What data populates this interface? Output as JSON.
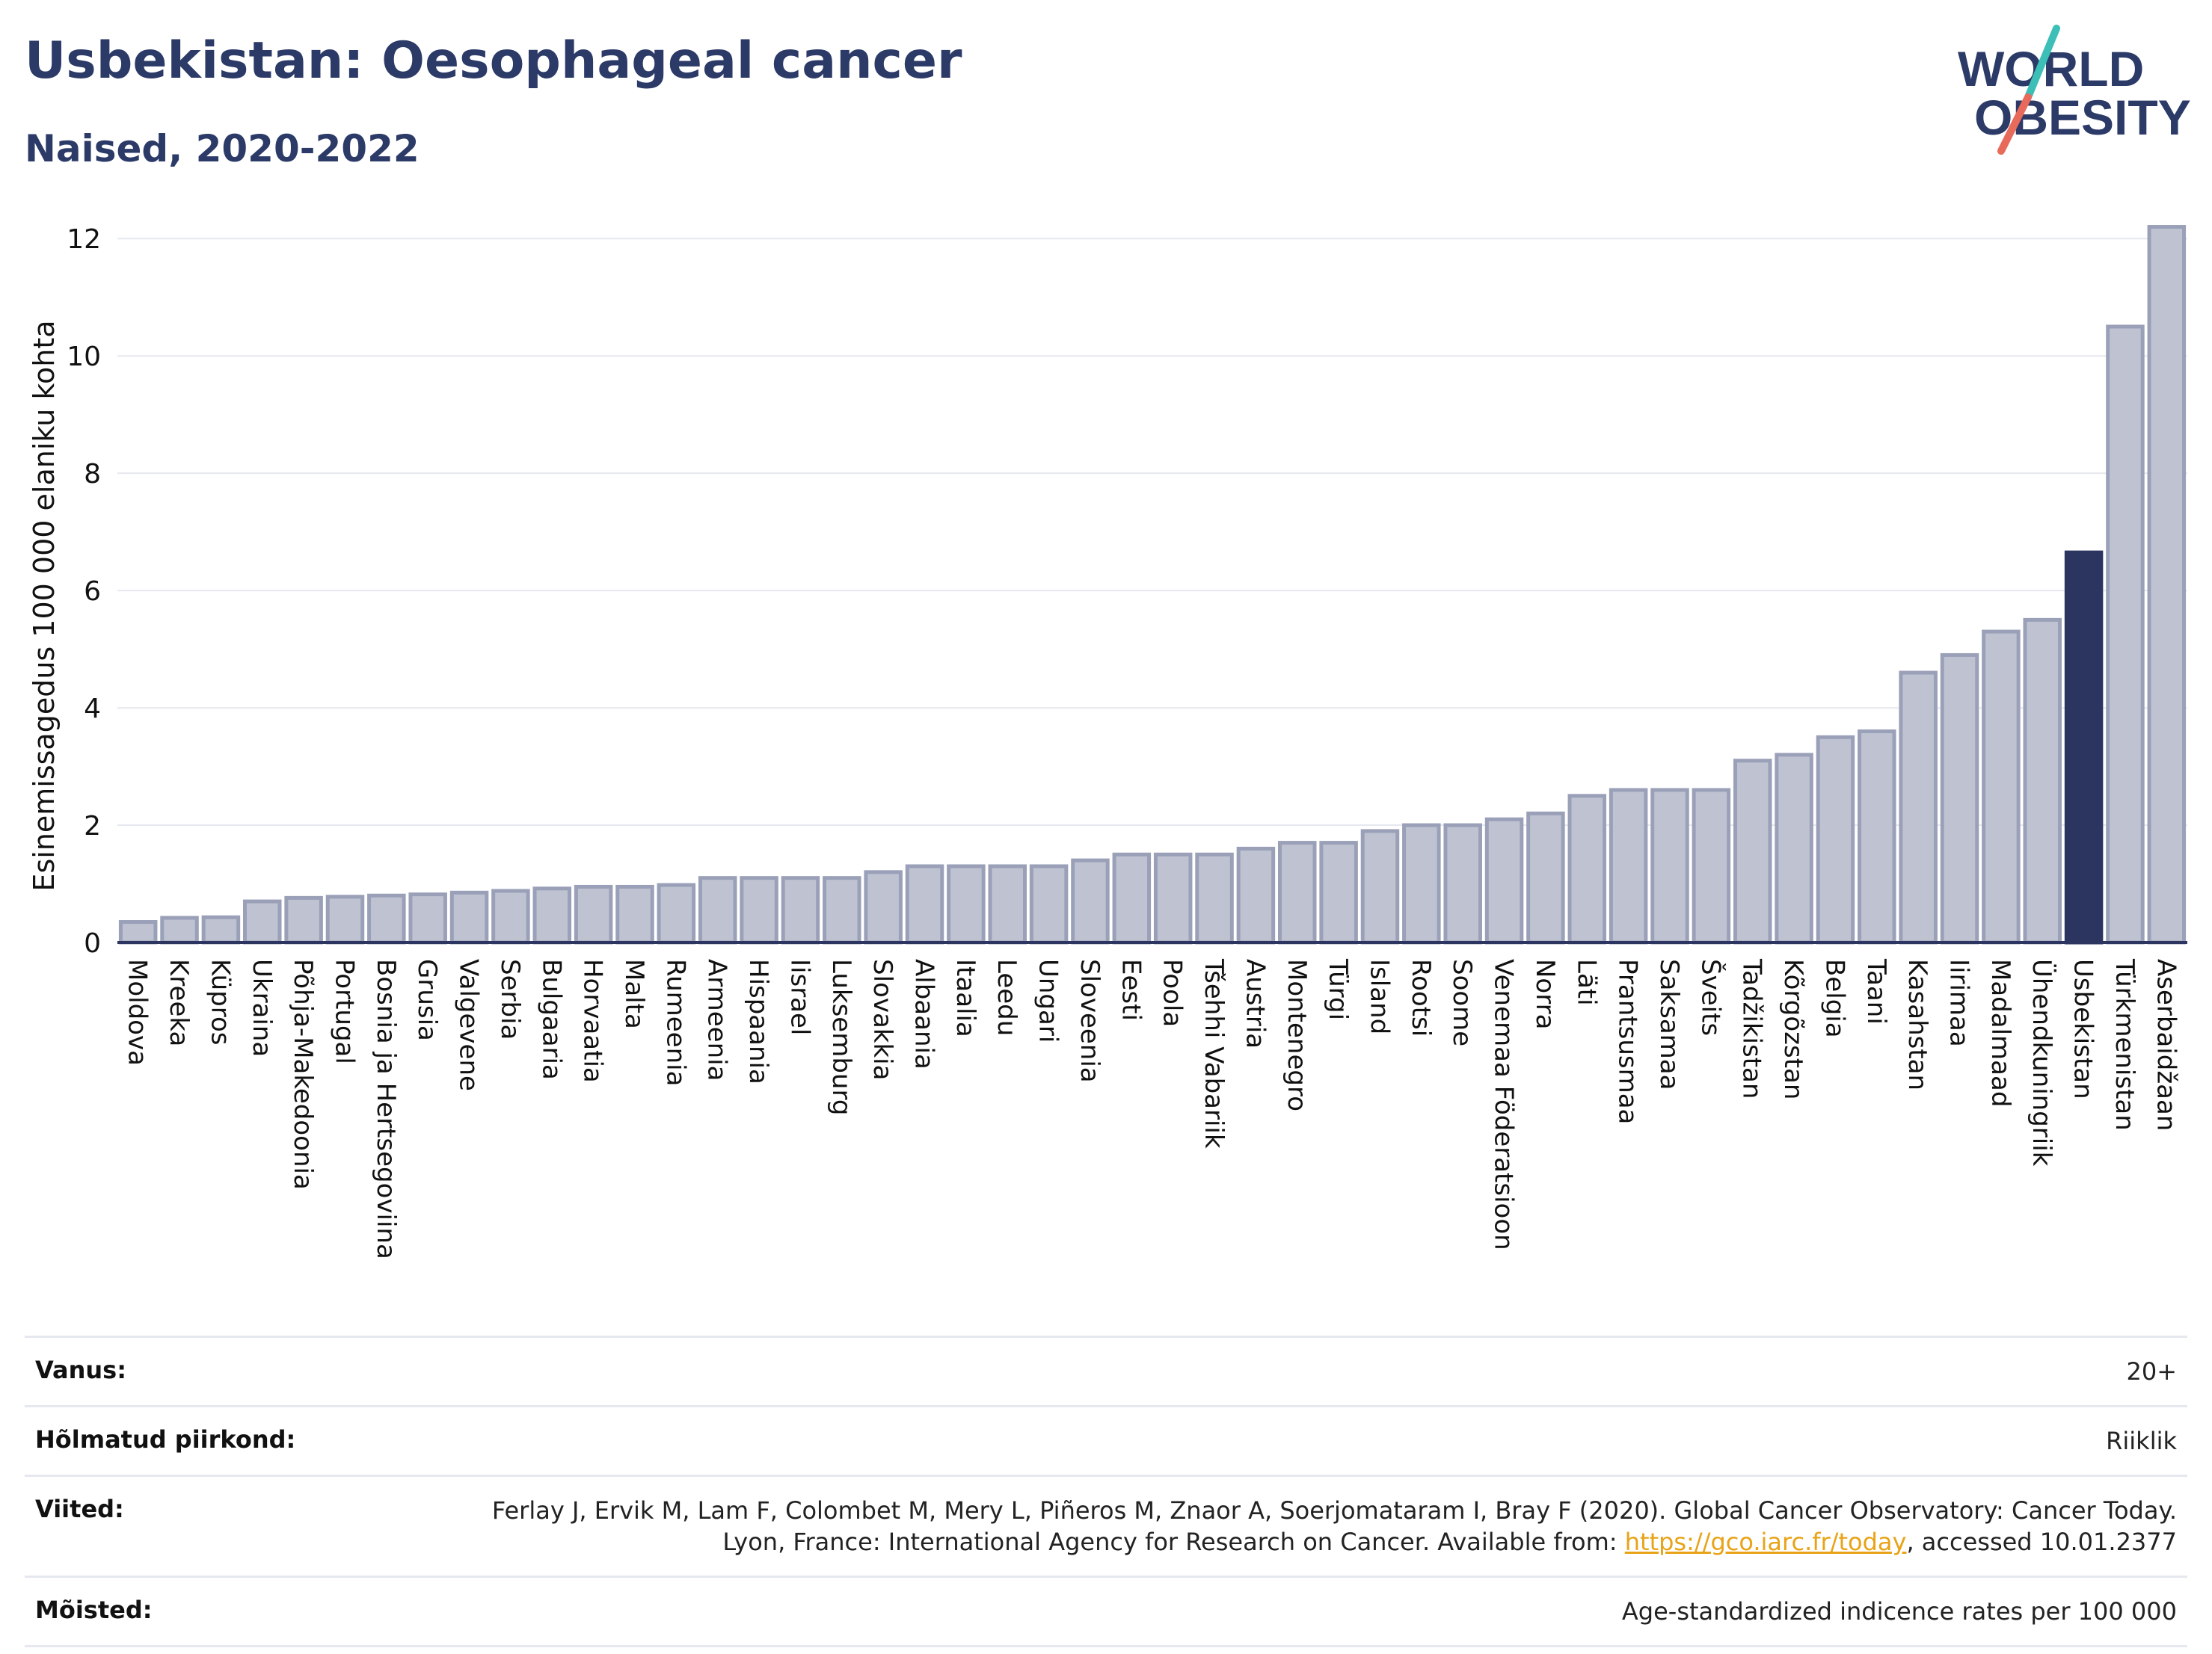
{
  "title": "Usbekistan: Oesophageal cancer",
  "subtitle": "Naised, 2020-2022",
  "logo": {
    "line1": "WORLD",
    "line2": "OBESITY",
    "accent_teal": "#3bbfb7",
    "accent_coral": "#e86a5a",
    "text_color": "#2b3a67"
  },
  "chart_data": {
    "type": "bar",
    "ylabel": "Esinemissagedus 100 000 elaniku kohta",
    "ylim": [
      0,
      12.5
    ],
    "yticks": [
      0,
      2,
      4,
      6,
      8,
      10,
      12
    ],
    "grid": true,
    "highlight": "Usbekistan",
    "colors": {
      "bar": "#bfc3d1",
      "bar_edge": "#9aa0b8",
      "highlight": "#2b3560",
      "axis": "#2b3560",
      "grid": "#e6e8ef"
    },
    "categories": [
      "Moldova",
      "Kreeka",
      "Küpros",
      "Ukraina",
      "Põhja-Makedoonia",
      "Portugal",
      "Bosnia ja Hertsegoviina",
      "Grusia",
      "Valgevene",
      "Serbia",
      "Bulgaaria",
      "Horvaatia",
      "Malta",
      "Rumeenia",
      "Armeenia",
      "Hispaania",
      "Iisrael",
      "Luksemburg",
      "Slovakkia",
      "Albaania",
      "Itaalia",
      "Leedu",
      "Ungari",
      "Sloveenia",
      "Eesti",
      "Poola",
      "Tšehhi Vabariik",
      "Austria",
      "Montenegro",
      "Türgi",
      "Island",
      "Rootsi",
      "Soome",
      "Venemaa Föderatsioon",
      "Norra",
      "Läti",
      "Prantsusmaa",
      "Saksamaa",
      "Šveits",
      "Tadžikistan",
      "Kõrgõzstan",
      "Belgia",
      "Taani",
      "Kasahstan",
      "Iirimaa",
      "Madalmaad",
      "Ühendkuningriik",
      "Usbekistan",
      "Türkmenistan",
      "Aserbaidžaan"
    ],
    "values": [
      0.35,
      0.42,
      0.43,
      0.7,
      0.76,
      0.78,
      0.8,
      0.82,
      0.85,
      0.88,
      0.92,
      0.95,
      0.95,
      0.98,
      1.1,
      1.1,
      1.1,
      1.1,
      1.2,
      1.3,
      1.3,
      1.3,
      1.3,
      1.4,
      1.5,
      1.5,
      1.5,
      1.6,
      1.7,
      1.7,
      1.9,
      2.0,
      2.0,
      2.1,
      2.2,
      2.5,
      2.6,
      2.6,
      2.6,
      3.1,
      3.2,
      3.5,
      3.6,
      4.6,
      4.9,
      5.3,
      5.5,
      6.65,
      10.5,
      12.2
    ]
  },
  "meta": [
    {
      "label": "Vanus:",
      "value": "20+"
    },
    {
      "label": "Hõlmatud piirkond:",
      "value": "Riiklik"
    },
    {
      "label": "Viited:",
      "value_before": "Ferlay J, Ervik M, Lam F, Colombet M, Mery L, Piñeros M, Znaor A, Soerjomataram I, Bray F (2020). Global Cancer Observatory: Cancer Today. Lyon, France: International Agency for Research on Cancer. Available from: ",
      "link": "https://gco.iarc.fr/today",
      "value_after": ", accessed 10.01.2377"
    },
    {
      "label": "Mõisted:",
      "value": "Age-standardized indicence rates per 100 000"
    }
  ]
}
